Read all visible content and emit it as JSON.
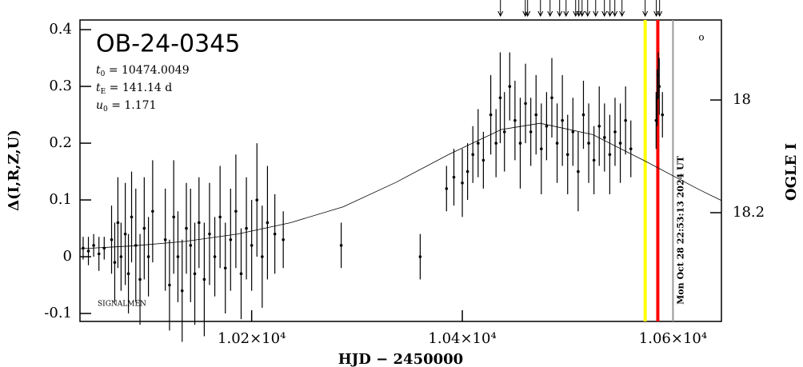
{
  "chart_data": {
    "type": "errorbar",
    "title": "OB-24-0345",
    "params": [
      {
        "symbol": "t",
        "sub": "0",
        "text": " = 10474.0049"
      },
      {
        "symbol": "t",
        "sub": "E",
        "text": " = 141.14 d"
      },
      {
        "symbol": "u",
        "sub": "0",
        "text": " = 1.171"
      }
    ],
    "x_label": "HJD − 2450000",
    "y_label": "Δ(I,R,Z,U)",
    "y2_label": "OGLE I",
    "corner_text": "SIGNALMEN",
    "date_label": "Mon Oct 28 22:53:13 2024 UT",
    "xlim": [
      10037,
      10646
    ],
    "xticks": [
      {
        "value": 10200,
        "label": "1.02×10⁴"
      },
      {
        "value": 10400,
        "label": "1.04×10⁴"
      },
      {
        "value": 10600,
        "label": "1.06×10⁴"
      }
    ],
    "ylim": [
      -0.114,
      0.417
    ],
    "yticks": [
      0.4,
      0.3,
      0.2,
      0.1,
      0,
      -0.1
    ],
    "y2lim": [
      18.393,
      17.858
    ],
    "y2ticks": [
      18,
      18.2
    ],
    "series": [
      {
        "name": "data",
        "color": "#000000",
        "x": [
          10040,
          10045,
          10050,
          10055,
          10060,
          10067,
          10070,
          10073,
          10076,
          10080,
          10083,
          10086,
          10090,
          10094,
          10098,
          10102,
          10106,
          10118,
          10122,
          10126,
          10130,
          10134,
          10138,
          10142,
          10146,
          10150,
          10155,
          10160,
          10165,
          10170,
          10175,
          10180,
          10185,
          10190,
          10195,
          10200,
          10205,
          10210,
          10215,
          10222,
          10230,
          10285,
          10360,
          10385,
          10392,
          10400,
          10405,
          10410,
          10415,
          10420,
          10427,
          10432,
          10436,
          10440,
          10445,
          10450,
          10455,
          10460,
          10465,
          10470,
          10475,
          10480,
          10485,
          10490,
          10495,
          10500,
          10505,
          10510,
          10515,
          10520,
          10525,
          10530,
          10535,
          10540,
          10545,
          10550,
          10555,
          10560,
          10584,
          10585,
          10586,
          10587,
          10590
        ],
        "values": [
          0.015,
          0.01,
          0.02,
          0.005,
          0.015,
          0.03,
          -0.01,
          0.06,
          0.0,
          0.04,
          -0.03,
          0.07,
          0.02,
          -0.04,
          0.05,
          0.0,
          0.08,
          0.03,
          -0.05,
          0.07,
          0.0,
          -0.06,
          0.05,
          0.02,
          -0.03,
          0.06,
          -0.04,
          0.04,
          0.0,
          0.07,
          -0.02,
          0.03,
          0.08,
          -0.03,
          0.05,
          0.02,
          0.1,
          0.0,
          0.06,
          0.04,
          0.03,
          0.02,
          0.0,
          0.12,
          0.14,
          0.13,
          0.15,
          0.18,
          0.2,
          0.17,
          0.25,
          0.2,
          0.28,
          0.22,
          0.3,
          0.24,
          0.2,
          0.27,
          0.22,
          0.25,
          0.19,
          0.23,
          0.28,
          0.2,
          0.24,
          0.18,
          0.22,
          0.15,
          0.25,
          0.2,
          0.17,
          0.23,
          0.21,
          0.18,
          0.22,
          0.2,
          0.24,
          0.19,
          0.24,
          0.28,
          0.32,
          0.3,
          0.25
        ],
        "errors": [
          0.02,
          0.025,
          0.02,
          0.03,
          0.02,
          0.06,
          0.07,
          0.08,
          0.06,
          0.09,
          0.07,
          0.08,
          0.1,
          0.08,
          0.09,
          0.07,
          0.09,
          0.09,
          0.08,
          0.1,
          0.08,
          0.09,
          0.08,
          0.1,
          0.09,
          0.08,
          0.1,
          0.09,
          0.07,
          0.09,
          0.08,
          0.09,
          0.1,
          0.08,
          0.09,
          0.08,
          0.1,
          0.09,
          0.1,
          0.07,
          0.05,
          0.04,
          0.04,
          0.04,
          0.05,
          0.06,
          0.05,
          0.05,
          0.06,
          0.05,
          0.07,
          0.06,
          0.08,
          0.07,
          0.06,
          0.07,
          0.08,
          0.07,
          0.06,
          0.07,
          0.08,
          0.06,
          0.07,
          0.07,
          0.08,
          0.07,
          0.06,
          0.07,
          0.06,
          0.07,
          0.06,
          0.07,
          0.06,
          0.07,
          0.06,
          0.07,
          0.06,
          0.05,
          0.05,
          0.05,
          0.04,
          0.05,
          0.04
        ]
      },
      {
        "name": "model",
        "color": "#000000",
        "x": [
          10037,
          10087,
          10137,
          10187,
          10237,
          10287,
          10337,
          10387,
          10437,
          10474,
          10524,
          10574,
          10624,
          10646
        ],
        "values": [
          0.014,
          0.019,
          0.027,
          0.04,
          0.06,
          0.088,
          0.131,
          0.18,
          0.224,
          0.235,
          0.215,
          0.168,
          0.119,
          0.099
        ]
      }
    ],
    "markers": [
      {
        "x": 10573.6,
        "color": "#ffff00"
      },
      {
        "x": 10585.6,
        "color": "#ff0000"
      },
      {
        "x": 10600,
        "color": "#999999"
      }
    ],
    "arrows_x": [
      10436.2,
      10459.8,
      10462,
      10474.2,
      10483.3,
      10492.4,
      10498.5,
      10507.6,
      10510.6,
      10513.7,
      10519,
      10526.6,
      10534.9,
      10540.2,
      10544.8,
      10551.6,
      10573.6,
      10584.2,
      10587.3
    ]
  }
}
